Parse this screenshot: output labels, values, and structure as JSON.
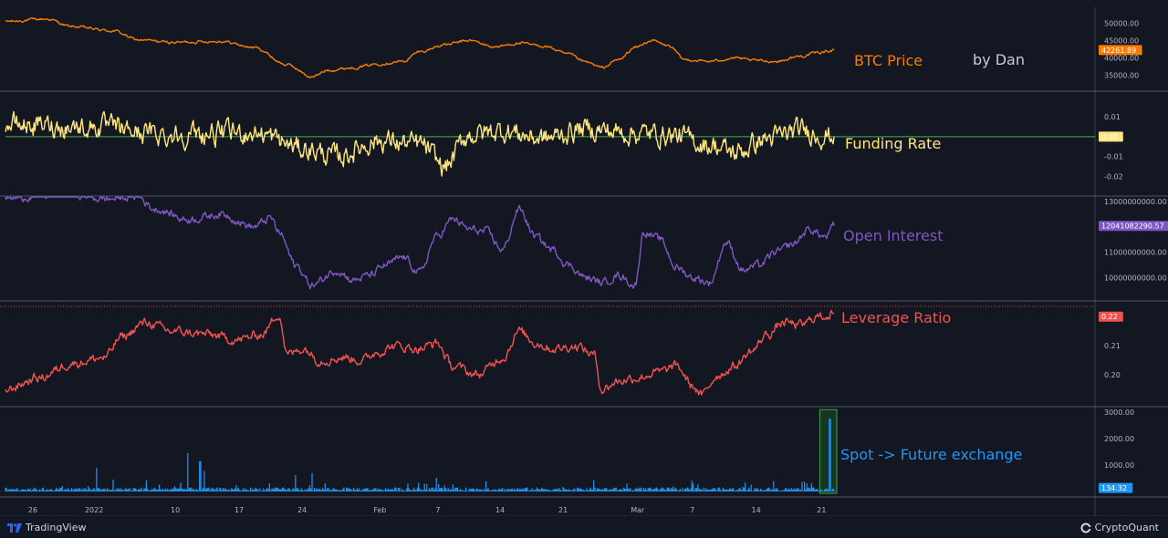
{
  "watermark": "by Dan",
  "footer": {
    "left_brand": "TradingView",
    "right_brand": "CryptoQuant"
  },
  "colors": {
    "background": "#131722",
    "grid": "#2a2e39",
    "axis_text": "#b2b5be",
    "zero_line": "#4caf50"
  },
  "chart_data": [
    {
      "type": "line",
      "name": "BTC Price",
      "color": "#f57c00",
      "ylim": [
        32000,
        53000
      ],
      "ticks": [
        50000,
        45000,
        40000,
        35000
      ],
      "tick_labels": [
        "50000.00",
        "45000.00",
        "40000.00",
        "35000.00"
      ],
      "last_value": 42261.89,
      "last_value_label": "42261.89",
      "keypoints": [
        [
          0,
          50500
        ],
        [
          0.05,
          51200
        ],
        [
          0.08,
          49000
        ],
        [
          0.13,
          47800
        ],
        [
          0.16,
          45200
        ],
        [
          0.2,
          44500
        ],
        [
          0.26,
          44800
        ],
        [
          0.3,
          43000
        ],
        [
          0.34,
          38000
        ],
        [
          0.37,
          34500
        ],
        [
          0.39,
          36500
        ],
        [
          0.42,
          37200
        ],
        [
          0.45,
          38300
        ],
        [
          0.48,
          39000
        ],
        [
          0.5,
          41800
        ],
        [
          0.53,
          43800
        ],
        [
          0.56,
          45000
        ],
        [
          0.59,
          43200
        ],
        [
          0.62,
          44200
        ],
        [
          0.65,
          43400
        ],
        [
          0.68,
          41000
        ],
        [
          0.7,
          38800
        ],
        [
          0.72,
          37200
        ],
        [
          0.74,
          39500
        ],
        [
          0.76,
          43000
        ],
        [
          0.78,
          45000
        ],
        [
          0.8,
          43500
        ],
        [
          0.82,
          39500
        ],
        [
          0.85,
          39000
        ],
        [
          0.88,
          40000
        ],
        [
          0.9,
          39300
        ],
        [
          0.93,
          39000
        ],
        [
          0.96,
          40500
        ],
        [
          0.98,
          41500
        ],
        [
          1,
          42261
        ]
      ],
      "noise": 600
    },
    {
      "type": "line",
      "name": "Funding Rate",
      "color": "#ffe57f",
      "ylim": [
        -0.027,
        0.02
      ],
      "ticks": [
        0.01,
        0,
        -0.01,
        -0.02
      ],
      "tick_labels": [
        "0.01",
        "0.00",
        "-0.01",
        "-0.02"
      ],
      "last_value": 0.0,
      "last_value_label": "0.00",
      "keypoints": [
        [
          0,
          0.006
        ],
        [
          0.1,
          0.005
        ],
        [
          0.2,
          0.001
        ],
        [
          0.3,
          0.002
        ],
        [
          0.36,
          -0.006
        ],
        [
          0.4,
          -0.01
        ],
        [
          0.45,
          -0.002
        ],
        [
          0.5,
          -0.004
        ],
        [
          0.53,
          -0.015
        ],
        [
          0.56,
          0.001
        ],
        [
          0.6,
          0.003
        ],
        [
          0.65,
          -0.001
        ],
        [
          0.7,
          0.004
        ],
        [
          0.75,
          0.002
        ],
        [
          0.8,
          0.001
        ],
        [
          0.85,
          -0.004
        ],
        [
          0.88,
          -0.008
        ],
        [
          0.92,
          -0.001
        ],
        [
          0.96,
          0.003
        ],
        [
          1,
          0.0
        ]
      ],
      "noise": 0.0085,
      "zero_line": true
    },
    {
      "type": "line",
      "name": "Open Interest",
      "color": "#7e57c2",
      "ylim": [
        9300000000,
        13000000000
      ],
      "ticks": [
        13000000000,
        12000000000,
        11000000000,
        10000000000
      ],
      "tick_labels": [
        "13000000000.00",
        "12000000000.00",
        "11000000000.00",
        "10000000000.00"
      ],
      "last_value": 12041082290.57,
      "last_value_label": "12041082290.57",
      "keypoints": [
        [
          0,
          13100000000
        ],
        [
          0.03,
          13200000000
        ],
        [
          0.08,
          13300000000
        ],
        [
          0.12,
          13100000000
        ],
        [
          0.16,
          13200000000
        ],
        [
          0.18,
          12700000000
        ],
        [
          0.22,
          12300000000
        ],
        [
          0.26,
          12500000000
        ],
        [
          0.3,
          12000000000
        ],
        [
          0.32,
          12350000000
        ],
        [
          0.33,
          11800000000
        ],
        [
          0.35,
          10500000000
        ],
        [
          0.37,
          9700000000
        ],
        [
          0.4,
          10300000000
        ],
        [
          0.42,
          9900000000
        ],
        [
          0.44,
          10100000000
        ],
        [
          0.46,
          10500000000
        ],
        [
          0.48,
          10800000000
        ],
        [
          0.5,
          10200000000
        ],
        [
          0.52,
          11600000000
        ],
        [
          0.54,
          12300000000
        ],
        [
          0.56,
          11900000000
        ],
        [
          0.58,
          11800000000
        ],
        [
          0.6,
          11100000000
        ],
        [
          0.62,
          12700000000
        ],
        [
          0.64,
          11600000000
        ],
        [
          0.66,
          11100000000
        ],
        [
          0.68,
          10500000000
        ],
        [
          0.7,
          10000000000
        ],
        [
          0.72,
          9800000000
        ],
        [
          0.74,
          10100000000
        ],
        [
          0.76,
          9700000000
        ],
        [
          0.77,
          11800000000
        ],
        [
          0.79,
          11500000000
        ],
        [
          0.81,
          10400000000
        ],
        [
          0.83,
          10000000000
        ],
        [
          0.85,
          9800000000
        ],
        [
          0.87,
          11400000000
        ],
        [
          0.89,
          10300000000
        ],
        [
          0.91,
          10500000000
        ],
        [
          0.93,
          11000000000
        ],
        [
          0.95,
          11300000000
        ],
        [
          0.97,
          11900000000
        ],
        [
          0.99,
          11600000000
        ],
        [
          1,
          12041082290
        ]
      ],
      "noise": 250000000
    },
    {
      "type": "line",
      "name": "Leverage Ratio",
      "color": "#ef5350",
      "ylim": [
        0.191,
        0.2235
      ],
      "ticks": [
        0.22,
        0.21,
        0.2
      ],
      "tick_labels": [
        "0.22",
        "0.21",
        "0.20"
      ],
      "last_value": 0.22,
      "last_value_label": "0.22",
      "keypoints": [
        [
          0,
          0.195
        ],
        [
          0.04,
          0.199
        ],
        [
          0.08,
          0.204
        ],
        [
          0.12,
          0.206
        ],
        [
          0.14,
          0.213
        ],
        [
          0.17,
          0.218
        ],
        [
          0.2,
          0.215
        ],
        [
          0.24,
          0.214
        ],
        [
          0.28,
          0.212
        ],
        [
          0.31,
          0.214
        ],
        [
          0.33,
          0.221
        ],
        [
          0.34,
          0.207
        ],
        [
          0.36,
          0.209
        ],
        [
          0.38,
          0.205
        ],
        [
          0.41,
          0.206
        ],
        [
          0.43,
          0.205
        ],
        [
          0.45,
          0.208
        ],
        [
          0.47,
          0.21
        ],
        [
          0.5,
          0.209
        ],
        [
          0.52,
          0.211
        ],
        [
          0.54,
          0.203
        ],
        [
          0.57,
          0.2
        ],
        [
          0.6,
          0.206
        ],
        [
          0.62,
          0.215
        ],
        [
          0.64,
          0.211
        ],
        [
          0.66,
          0.209
        ],
        [
          0.69,
          0.21
        ],
        [
          0.71,
          0.207
        ],
        [
          0.72,
          0.195
        ],
        [
          0.74,
          0.198
        ],
        [
          0.76,
          0.199
        ],
        [
          0.79,
          0.201
        ],
        [
          0.81,
          0.203
        ],
        [
          0.83,
          0.196
        ],
        [
          0.84,
          0.193
        ],
        [
          0.86,
          0.2
        ],
        [
          0.88,
          0.203
        ],
        [
          0.9,
          0.208
        ],
        [
          0.92,
          0.214
        ],
        [
          0.94,
          0.218
        ],
        [
          0.96,
          0.217
        ],
        [
          0.98,
          0.22
        ],
        [
          1,
          0.221
        ]
      ],
      "noise": 0.0025,
      "dotted_reference": 0.2235
    },
    {
      "type": "bar",
      "name": "Spot -> Future exchange",
      "color": "#2196f3",
      "ylim": [
        0,
        3000
      ],
      "ticks": [
        3000,
        2000,
        1000
      ],
      "tick_labels": [
        "3000.00",
        "2000.00",
        "1000.00"
      ],
      "last_value": 134.32,
      "last_value_label": "134.32",
      "baseline": 90,
      "spikes": [
        [
          0.11,
          900
        ],
        [
          0.13,
          450
        ],
        [
          0.17,
          420
        ],
        [
          0.22,
          1450
        ],
        [
          0.235,
          1150
        ],
        [
          0.24,
          780
        ],
        [
          0.35,
          620
        ],
        [
          0.37,
          700
        ],
        [
          0.52,
          520
        ],
        [
          0.58,
          380
        ],
        [
          0.71,
          420
        ],
        [
          0.75,
          300
        ],
        [
          0.83,
          300
        ],
        [
          0.9,
          260
        ],
        [
          0.995,
          2750
        ]
      ],
      "highlight_range": [
        0.985,
        1.0
      ]
    }
  ],
  "x_axis": {
    "tick_labels": [
      "26",
      "2022",
      "10",
      "17",
      "24",
      "Feb",
      "7",
      "14",
      "21",
      "Mar",
      "7",
      "14",
      "21"
    ],
    "tick_fracs": [
      0.033,
      0.107,
      0.205,
      0.282,
      0.358,
      0.452,
      0.522,
      0.597,
      0.673,
      0.763,
      0.829,
      0.906,
      0.985
    ]
  }
}
